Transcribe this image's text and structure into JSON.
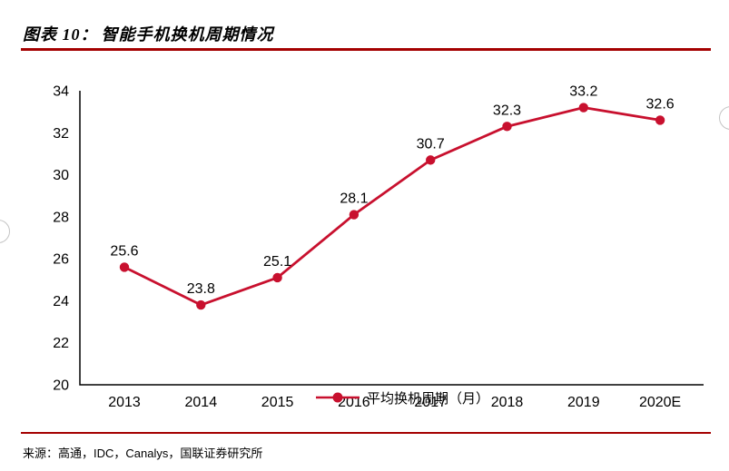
{
  "header": {
    "label": "图表 10：",
    "title": "智能手机换机周期情况"
  },
  "chart_data": {
    "type": "line",
    "title": "智能手机换机周期情况",
    "categories": [
      "2013",
      "2014",
      "2015",
      "2016",
      "2017",
      "2018",
      "2019",
      "2020E"
    ],
    "series": [
      {
        "name": "平均换机周期（月）",
        "values": [
          25.6,
          23.8,
          25.1,
          28.1,
          30.7,
          32.3,
          33.2,
          32.6
        ]
      }
    ],
    "data_labels": [
      "25.6",
      "23.8",
      "25.1",
      "28.1",
      "30.7",
      "32.3",
      "33.2",
      "32.6"
    ],
    "ylim": [
      20,
      34
    ],
    "yticks": [
      20,
      22,
      24,
      26,
      28,
      30,
      32,
      34
    ],
    "xlabel": "",
    "ylabel": "",
    "grid": false,
    "legend_position": "inside-bottom-center"
  },
  "footer": {
    "source": "来源：高通，IDC，Canalys，国联证券研究所"
  },
  "colors": {
    "accent": "#c8102e",
    "rule": "#a40000",
    "axis": "#000000",
    "label_text": "#000000"
  }
}
